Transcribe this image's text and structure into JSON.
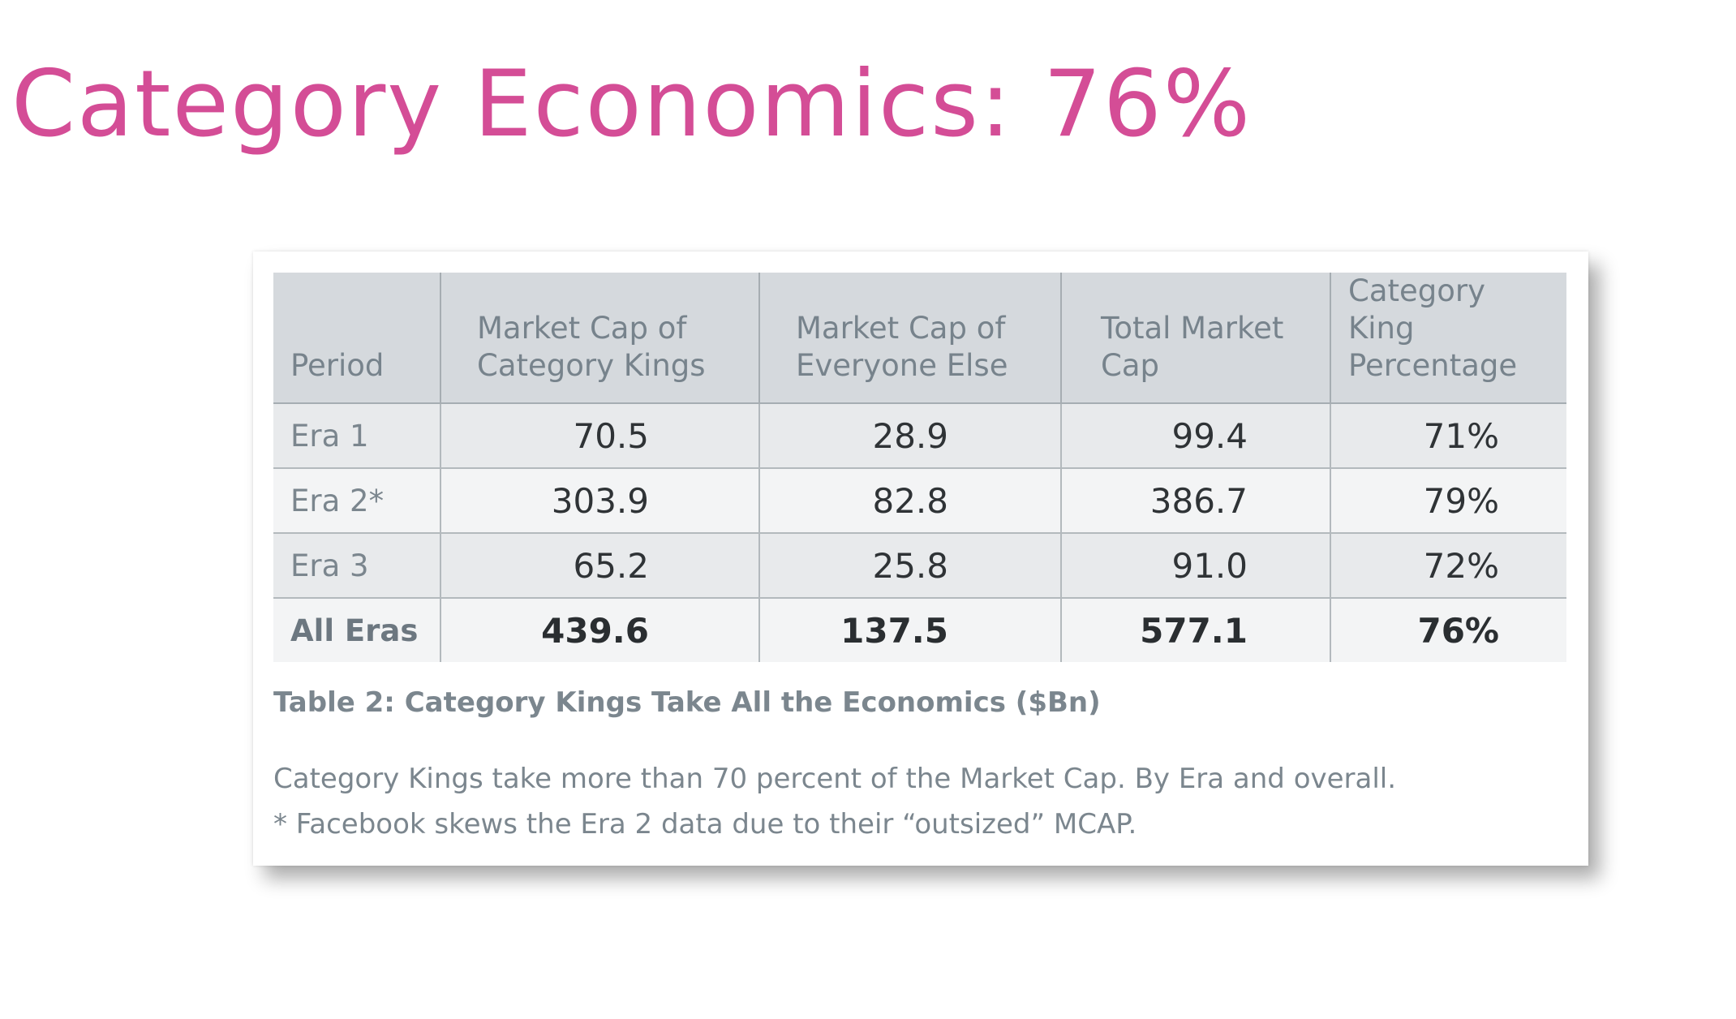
{
  "title": "Category Economics: 76%",
  "chart_data": {
    "type": "table",
    "columns": [
      "Period",
      "Market Cap of Category Kings",
      "Market Cap of Everyone Else",
      "Total Market Cap",
      "Category King Percentage"
    ],
    "header_lines": [
      [
        "Period"
      ],
      [
        "Market Cap of",
        "Category Kings"
      ],
      [
        "Market Cap of",
        "Everyone Else"
      ],
      [
        "Total Market",
        "Cap"
      ],
      [
        "Category King",
        "Percentage"
      ]
    ],
    "rows": [
      [
        "Era 1",
        "70.5",
        "28.9",
        "99.4",
        "71%"
      ],
      [
        "Era 2*",
        "303.9",
        "82.8",
        "386.7",
        "79%"
      ],
      [
        "Era 3",
        "65.2",
        "25.8",
        "91.0",
        "72%"
      ],
      [
        "All Eras",
        "439.6",
        "137.5",
        "577.1",
        "76%"
      ]
    ],
    "caption": "Table 2: Category Kings Take All the Economics ($Bn)",
    "notes": [
      "Category Kings take more than 70 percent of the Market Cap. By Era and overall.",
      "* Facebook skews the Era 2 data due to their “outsized” MCAP."
    ]
  },
  "colors": {
    "title": "#d44d96",
    "header_bg": "#d5d9dd",
    "row_odd_bg": "#e8eaec",
    "row_even_bg": "#f3f4f5",
    "muted_text": "#7b868e"
  }
}
